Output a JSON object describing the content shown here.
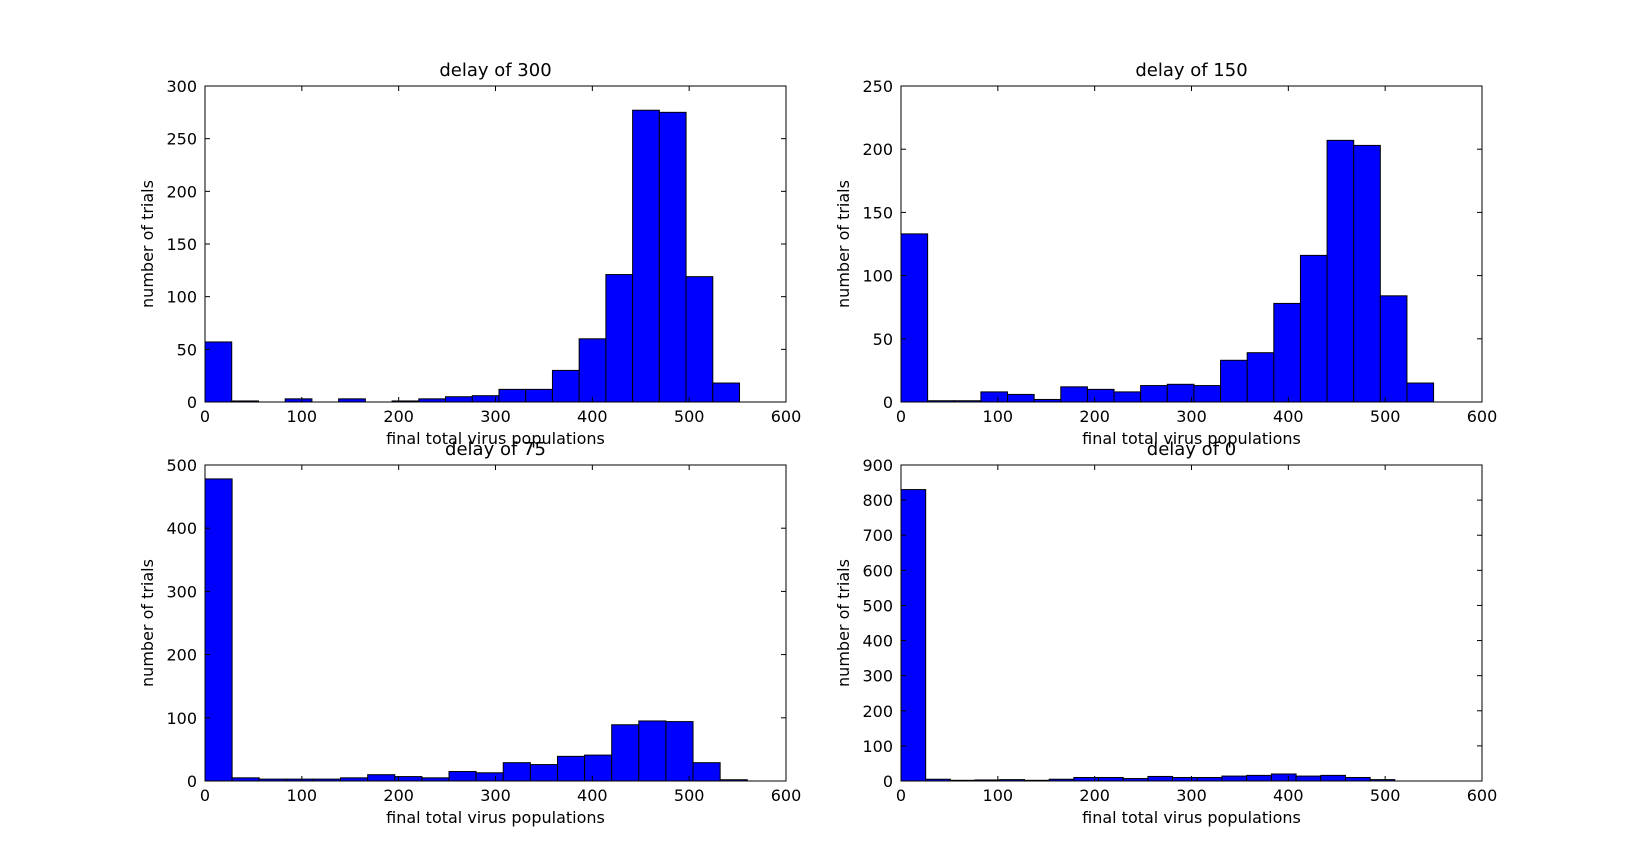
{
  "chart_data": [
    {
      "type": "bar",
      "title": "delay of 300",
      "xlabel": "final total virus populations",
      "ylabel": "number of trials",
      "xlim": [
        0,
        600
      ],
      "ylim": [
        0,
        300
      ],
      "xticks": [
        "0",
        "100",
        "200",
        "300",
        "400",
        "500",
        "600"
      ],
      "yticks": [
        "0",
        "50",
        "100",
        "150",
        "200",
        "250",
        "300"
      ],
      "bin_width": 27.6,
      "values": [
        57,
        1,
        0,
        3,
        0,
        3,
        0,
        1,
        3,
        5,
        6,
        12,
        12,
        30,
        60,
        121,
        277,
        275,
        119,
        18
      ],
      "bar_color": "#0000ff",
      "grid": false
    },
    {
      "type": "bar",
      "title": "delay of 150",
      "xlabel": "final total virus populations",
      "ylabel": "number of trials",
      "xlim": [
        0,
        600
      ],
      "ylim": [
        0,
        250
      ],
      "xticks": [
        "0",
        "100",
        "200",
        "300",
        "400",
        "500",
        "600"
      ],
      "yticks": [
        "0",
        "50",
        "100",
        "150",
        "200",
        "250"
      ],
      "bin_width": 27.5,
      "values": [
        133,
        1,
        1,
        8,
        6,
        2,
        12,
        10,
        8,
        13,
        14,
        13,
        33,
        39,
        78,
        116,
        207,
        203,
        84,
        15
      ],
      "bar_color": "#0000ff",
      "grid": false
    },
    {
      "type": "bar",
      "title": "delay of 75",
      "xlabel": "final total virus populations",
      "ylabel": "number of trials",
      "xlim": [
        0,
        600
      ],
      "ylim": [
        0,
        500
      ],
      "xticks": [
        "0",
        "100",
        "200",
        "300",
        "400",
        "500",
        "600"
      ],
      "yticks": [
        "0",
        "100",
        "200",
        "300",
        "400",
        "500"
      ],
      "bin_width": 28.0,
      "values": [
        478,
        5,
        3,
        3,
        3,
        5,
        10,
        7,
        5,
        15,
        13,
        29,
        26,
        39,
        41,
        89,
        95,
        94,
        29,
        2
      ],
      "bar_color": "#0000ff",
      "grid": false
    },
    {
      "type": "bar",
      "title": "delay of 0",
      "xlabel": "final total virus populations",
      "ylabel": "number of trials",
      "xlim": [
        0,
        600
      ],
      "ylim": [
        0,
        900
      ],
      "xticks": [
        "0",
        "100",
        "200",
        "300",
        "400",
        "500",
        "600"
      ],
      "yticks": [
        "0",
        "100",
        "200",
        "300",
        "400",
        "500",
        "600",
        "700",
        "800",
        "900"
      ],
      "bin_width": 25.5,
      "values": [
        830,
        5,
        2,
        3,
        4,
        2,
        5,
        10,
        10,
        7,
        13,
        10,
        10,
        14,
        16,
        20,
        14,
        16,
        10,
        4
      ],
      "bar_color": "#0000ff",
      "grid": false
    }
  ]
}
